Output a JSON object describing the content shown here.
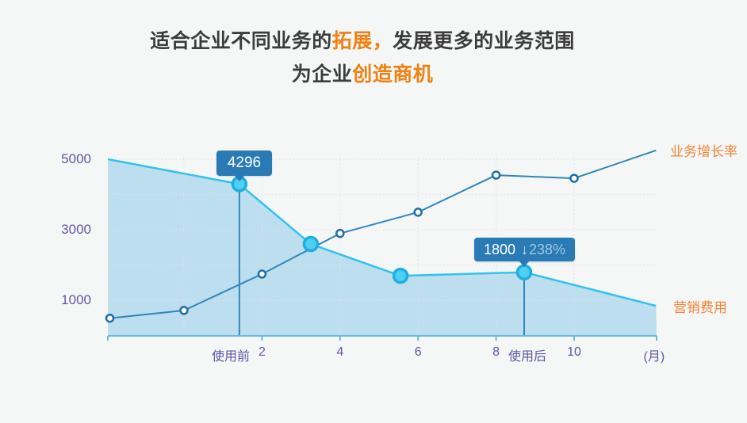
{
  "title": {
    "line1": {
      "pre": "适合企业不同业务的",
      "highlight": "拓展，",
      "post": "发展更多的业务范围"
    },
    "line2": {
      "pre": "为企业",
      "highlight": "创造商机",
      "post": ""
    }
  },
  "colors": {
    "accent_orange": "#ef8213",
    "legend_orange": "#f2873a",
    "axis_label_purple": "#5e58a7",
    "tooltip_bg": "#2a7ab5",
    "axis_line_blue": "#69b8da",
    "growth_line": "#3186bb",
    "cost_line": "#31c3ec",
    "cost_fill": "#bcdeee",
    "background": "#f5f6f6"
  },
  "chart_data": {
    "type": "line",
    "title": "",
    "xlabel": "(月)",
    "ylabel": "",
    "xlim": [
      -1.95,
      12.1
    ],
    "ylim": [
      0,
      5300
    ],
    "grid": "dotted",
    "legend_position": "right",
    "y_ticks": [
      5000,
      3000,
      1000
    ],
    "x_axis_labels": [
      {
        "label": "使用前",
        "month": 1.2
      },
      {
        "label": "2",
        "month": 2
      },
      {
        "label": "4",
        "month": 4
      },
      {
        "label": "6",
        "month": 6
      },
      {
        "label": "8",
        "month": 8
      },
      {
        "label": "使用后",
        "month": 8.8
      },
      {
        "label": "10",
        "month": 10
      },
      {
        "label": "(月)",
        "month": 12.05
      }
    ],
    "series": [
      {
        "name": "业务增长率",
        "kind": "line",
        "color": "#3186bb",
        "marker": "hollow-circle",
        "x": [
          -1.9,
          0,
          2,
          4,
          6,
          8,
          10,
          12.1
        ],
        "values": [
          500,
          720,
          1750,
          2900,
          3500,
          4550,
          4460,
          5250
        ],
        "marker_indices": [
          0,
          1,
          2,
          3,
          4,
          5,
          6
        ]
      },
      {
        "name": "营销费用",
        "kind": "area",
        "color": "#31c3ec",
        "fill": "#bcdeee",
        "marker": "cyan-dot",
        "x": [
          -1.95,
          1.42,
          3.25,
          5.55,
          8.72,
          12.1
        ],
        "values": [
          5000,
          4296,
          2600,
          1700,
          1800,
          850
        ],
        "marker_indices": [
          1,
          2,
          3,
          4
        ]
      }
    ],
    "annotations": [
      {
        "label": "4296",
        "series": "营销费用",
        "month": 1.42,
        "value": 4296
      },
      {
        "label": "1800",
        "arrow": "↓",
        "delta": "238%",
        "series": "营销费用",
        "month": 8.72,
        "value": 1800
      }
    ]
  }
}
